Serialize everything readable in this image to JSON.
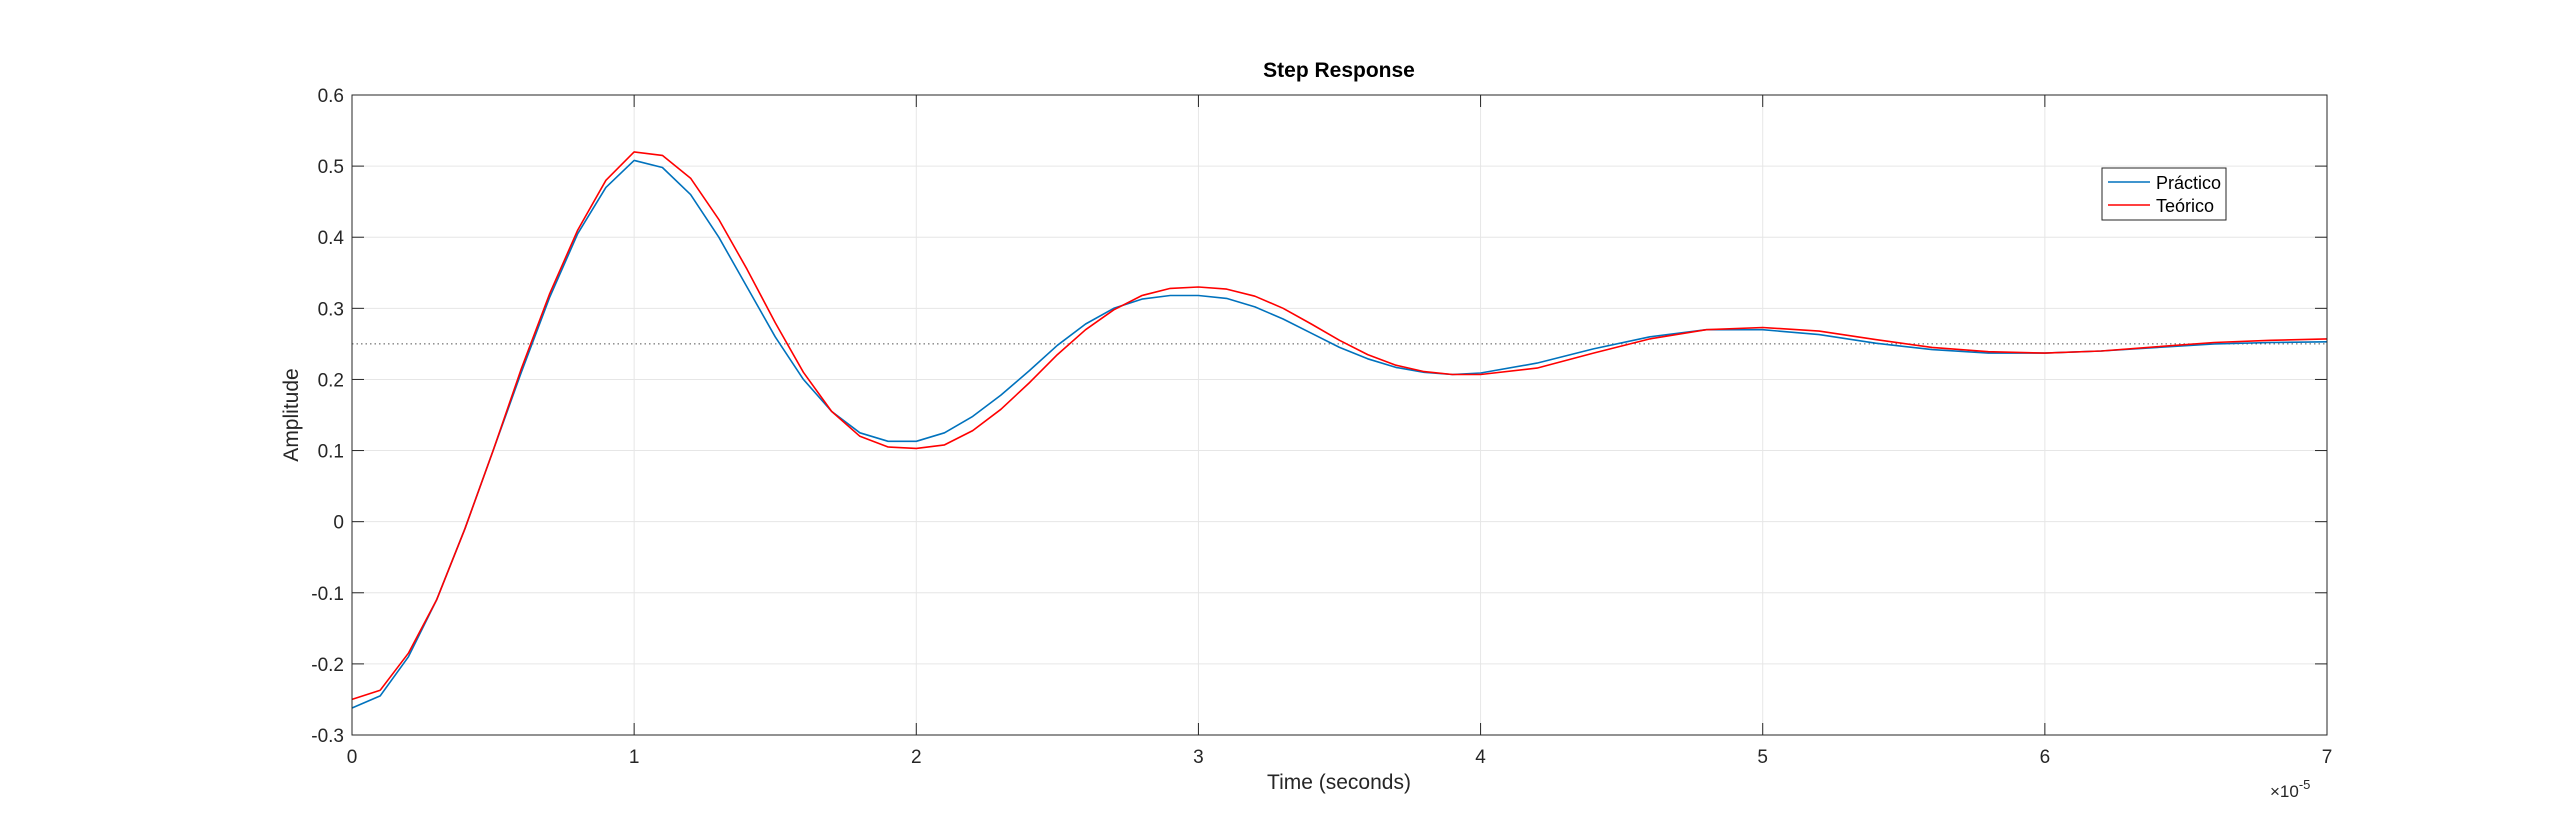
{
  "chart_data": {
    "type": "line",
    "title": "Step Response",
    "xlabel": "Time (seconds)",
    "ylabel": "Amplitude",
    "x_multiplier": "×10",
    "x_multiplier_exp": "-5",
    "xlim": [
      0,
      7
    ],
    "ylim": [
      -0.3,
      0.6
    ],
    "xticks": [
      "0",
      "1",
      "2",
      "3",
      "4",
      "5",
      "6",
      "7"
    ],
    "yticks": [
      "-0.3",
      "-0.2",
      "-0.1",
      "0",
      "0.1",
      "0.2",
      "0.3",
      "0.4",
      "0.5",
      "0.6"
    ],
    "grid": true,
    "legend_position": "top-right",
    "reference_line": {
      "y": 0.25,
      "style": "dotted",
      "color": "#555555"
    },
    "series": [
      {
        "name": "Práctico",
        "color": "#0072BD",
        "points": [
          [
            0.0,
            -0.262
          ],
          [
            0.1,
            -0.245
          ],
          [
            0.2,
            -0.19
          ],
          [
            0.3,
            -0.11
          ],
          [
            0.4,
            -0.01
          ],
          [
            0.5,
            0.1
          ],
          [
            0.6,
            0.21
          ],
          [
            0.7,
            0.315
          ],
          [
            0.8,
            0.405
          ],
          [
            0.9,
            0.47
          ],
          [
            1.0,
            0.508
          ],
          [
            1.1,
            0.498
          ],
          [
            1.2,
            0.46
          ],
          [
            1.3,
            0.4
          ],
          [
            1.4,
            0.33
          ],
          [
            1.5,
            0.26
          ],
          [
            1.6,
            0.2
          ],
          [
            1.7,
            0.155
          ],
          [
            1.8,
            0.125
          ],
          [
            1.9,
            0.113
          ],
          [
            2.0,
            0.113
          ],
          [
            2.1,
            0.125
          ],
          [
            2.2,
            0.148
          ],
          [
            2.3,
            0.178
          ],
          [
            2.4,
            0.212
          ],
          [
            2.5,
            0.248
          ],
          [
            2.6,
            0.278
          ],
          [
            2.7,
            0.3
          ],
          [
            2.8,
            0.313
          ],
          [
            2.9,
            0.318
          ],
          [
            3.0,
            0.318
          ],
          [
            3.1,
            0.314
          ],
          [
            3.2,
            0.302
          ],
          [
            3.3,
            0.285
          ],
          [
            3.4,
            0.265
          ],
          [
            3.5,
            0.245
          ],
          [
            3.6,
            0.229
          ],
          [
            3.7,
            0.217
          ],
          [
            3.8,
            0.21
          ],
          [
            3.9,
            0.207
          ],
          [
            4.0,
            0.209
          ],
          [
            4.2,
            0.223
          ],
          [
            4.4,
            0.243
          ],
          [
            4.6,
            0.26
          ],
          [
            4.8,
            0.27
          ],
          [
            5.0,
            0.27
          ],
          [
            5.2,
            0.263
          ],
          [
            5.4,
            0.251
          ],
          [
            5.6,
            0.242
          ],
          [
            5.8,
            0.237
          ],
          [
            6.0,
            0.237
          ],
          [
            6.2,
            0.24
          ],
          [
            6.4,
            0.245
          ],
          [
            6.6,
            0.25
          ],
          [
            6.8,
            0.252
          ],
          [
            7.0,
            0.253
          ]
        ]
      },
      {
        "name": "Teórico",
        "color": "#FF0000",
        "points": [
          [
            0.0,
            -0.25
          ],
          [
            0.1,
            -0.237
          ],
          [
            0.2,
            -0.185
          ],
          [
            0.3,
            -0.11
          ],
          [
            0.4,
            -0.01
          ],
          [
            0.5,
            0.1
          ],
          [
            0.6,
            0.215
          ],
          [
            0.7,
            0.32
          ],
          [
            0.8,
            0.41
          ],
          [
            0.9,
            0.48
          ],
          [
            1.0,
            0.52
          ],
          [
            1.1,
            0.515
          ],
          [
            1.2,
            0.483
          ],
          [
            1.3,
            0.425
          ],
          [
            1.4,
            0.355
          ],
          [
            1.5,
            0.28
          ],
          [
            1.6,
            0.21
          ],
          [
            1.7,
            0.155
          ],
          [
            1.8,
            0.12
          ],
          [
            1.9,
            0.105
          ],
          [
            2.0,
            0.103
          ],
          [
            2.1,
            0.108
          ],
          [
            2.2,
            0.128
          ],
          [
            2.3,
            0.158
          ],
          [
            2.4,
            0.195
          ],
          [
            2.5,
            0.235
          ],
          [
            2.6,
            0.27
          ],
          [
            2.7,
            0.298
          ],
          [
            2.8,
            0.318
          ],
          [
            2.9,
            0.328
          ],
          [
            3.0,
            0.33
          ],
          [
            3.1,
            0.327
          ],
          [
            3.2,
            0.317
          ],
          [
            3.3,
            0.3
          ],
          [
            3.4,
            0.278
          ],
          [
            3.5,
            0.255
          ],
          [
            3.6,
            0.235
          ],
          [
            3.7,
            0.22
          ],
          [
            3.8,
            0.211
          ],
          [
            3.9,
            0.207
          ],
          [
            4.0,
            0.207
          ],
          [
            4.2,
            0.216
          ],
          [
            4.4,
            0.237
          ],
          [
            4.6,
            0.257
          ],
          [
            4.8,
            0.27
          ],
          [
            5.0,
            0.273
          ],
          [
            5.2,
            0.268
          ],
          [
            5.4,
            0.256
          ],
          [
            5.6,
            0.245
          ],
          [
            5.8,
            0.239
          ],
          [
            6.0,
            0.237
          ],
          [
            6.2,
            0.24
          ],
          [
            6.4,
            0.246
          ],
          [
            6.6,
            0.252
          ],
          [
            6.8,
            0.255
          ],
          [
            7.0,
            0.257
          ]
        ]
      }
    ]
  }
}
